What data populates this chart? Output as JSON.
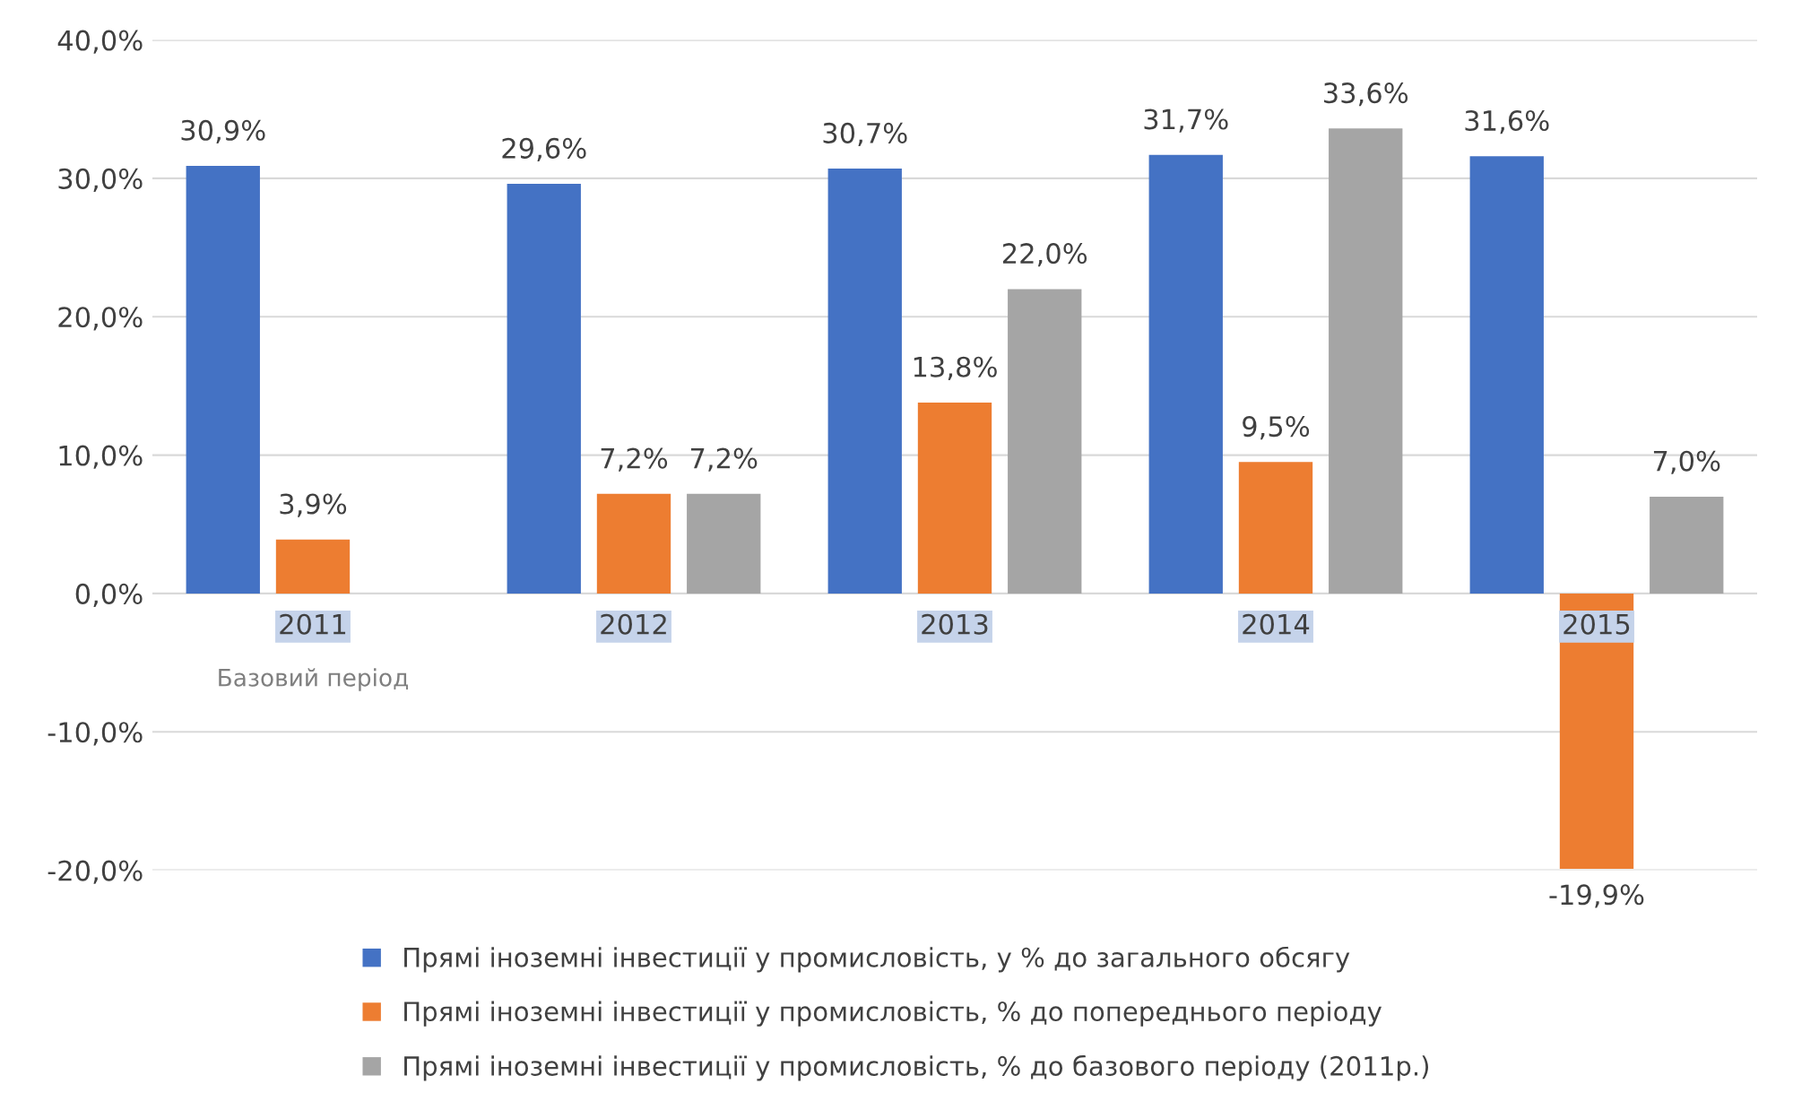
{
  "chart_data": {
    "type": "bar",
    "categories": [
      "2011",
      "2012",
      "2013",
      "2014",
      "2015"
    ],
    "series": [
      {
        "name": "Прямі іноземні інвестиції у промисловість, у % до загального обсягу",
        "color": "#4472c4",
        "values": [
          30.9,
          29.6,
          30.7,
          31.7,
          31.6
        ],
        "value_labels": [
          "30,9%",
          "29,6%",
          "30,7%",
          "31,7%",
          "31,6%"
        ]
      },
      {
        "name": "Прямі іноземні інвестиції у промисловість, % до попереднього періоду",
        "color": "#ed7d31",
        "values": [
          3.9,
          7.2,
          13.8,
          9.5,
          -19.9
        ],
        "value_labels": [
          "3,9%",
          "7,2%",
          "13,8%",
          "9,5%",
          "-19,9%"
        ]
      },
      {
        "name": "Прямі іноземні інвестиції у промисловість, % до базового періоду (2011р.)",
        "color": "#a5a5a5",
        "values": [
          0,
          7.2,
          22.0,
          33.6,
          7.0
        ],
        "value_labels": [
          null,
          "7,2%",
          "22,0%",
          "33,6%",
          "7,0%"
        ]
      }
    ],
    "ylim": [
      -20,
      40
    ],
    "yticks": [
      {
        "value": -20,
        "label": "-20,0%"
      },
      {
        "value": -10,
        "label": "-10,0%"
      },
      {
        "value": 0,
        "label": "0,0%"
      },
      {
        "value": 10,
        "label": "10,0%"
      },
      {
        "value": 20,
        "label": "20,0%"
      },
      {
        "value": 30,
        "label": "30,0%"
      },
      {
        "value": 40,
        "label": "40,0%"
      }
    ],
    "grid": "y",
    "legend": "bottom",
    "annotations": [
      "Базовий період"
    ]
  }
}
